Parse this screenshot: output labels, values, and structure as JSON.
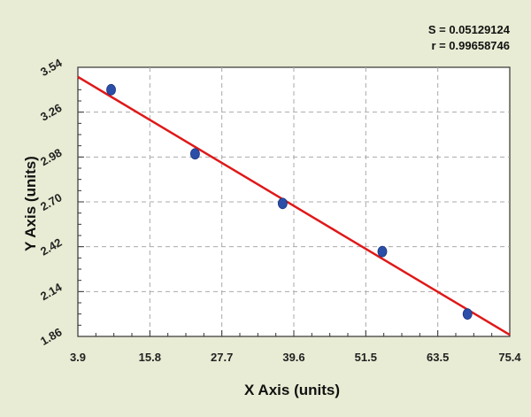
{
  "chart_data": {
    "type": "scatter",
    "stats": [
      "S = 0.05129124",
      "r = 0.99658746"
    ],
    "xlabel": "X Axis (units)",
    "ylabel": "Y Axis (units)",
    "xlim": [
      3.9,
      75.4
    ],
    "ylim": [
      1.86,
      3.54
    ],
    "x_ticks": [
      "3.9",
      "15.8",
      "27.7",
      "39.6",
      "51.5",
      "63.5",
      "75.4"
    ],
    "y_ticks": [
      "1.86",
      "2.14",
      "2.42",
      "2.70",
      "2.98",
      "3.26",
      "3.54"
    ],
    "grid": true,
    "series": [
      {
        "type": "points",
        "color": "#2b4ea8",
        "x": [
          9.4,
          23.3,
          37.8,
          54.3,
          68.4
        ],
        "y": [
          3.4,
          3.0,
          2.69,
          2.39,
          2.0
        ]
      }
    ],
    "fit_line": {
      "color": "#e01818",
      "x": [
        3.9,
        75.4
      ],
      "y": [
        3.48,
        1.87
      ]
    },
    "colors": {
      "background": "#e9ecd4",
      "plot_area": "#ffffff",
      "grid": "#a9a9a9"
    }
  }
}
